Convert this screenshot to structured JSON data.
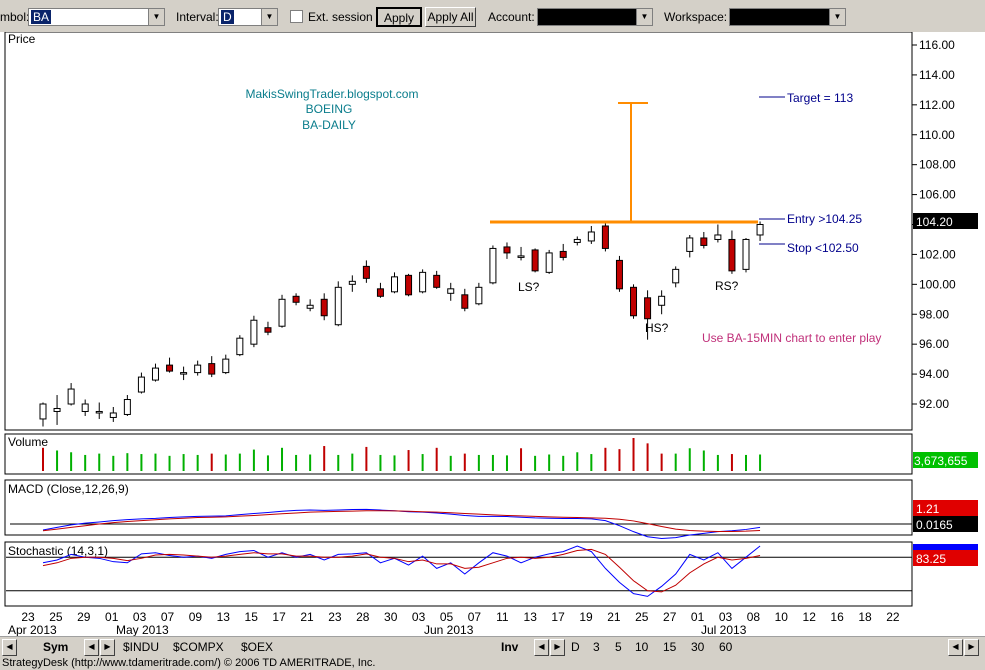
{
  "toolbar": {
    "symbol_label": "mbol:",
    "symbol_value": "BA",
    "interval_label": "Interval:",
    "interval_value": "D",
    "ext_session_label": "Ext. session",
    "apply_label": "Apply",
    "apply_all_label": "Apply All",
    "account_label": "Account:",
    "workspace_label": "Workspace:"
  },
  "panels": {
    "price_title": "Price",
    "volume_title": "Volume",
    "volume_readout": "3,673,655",
    "macd_title": "MACD (Close,12,26,9)",
    "macd_readout_1": "1.21",
    "macd_readout_2": "0.0165",
    "stoch_title": "Stochastic (14,3,1)",
    "stoch_readout": "83.25",
    "price_readout": "104.20"
  },
  "annotations": {
    "blog": "MakisSwingTrader.blogspot.com",
    "company": "BOEING",
    "chart_name": "BA-DAILY",
    "target": "Target = 113",
    "entry": "Entry >104.25",
    "stop": "Stop <102.50",
    "ls": "LS?",
    "hs": "HS?",
    "rs": "RS?",
    "note": "Use BA-15MIN chart to enter play"
  },
  "bottom_tabs": {
    "sym": "Sym",
    "indices": [
      "$INDU",
      "$COMPX",
      "$OEX"
    ],
    "inv": "Inv",
    "intervals": [
      "D",
      "3",
      "5",
      "10",
      "15",
      "30",
      "60"
    ]
  },
  "status_text": "StrategyDesk (http://www.tdameritrade.com/) © 2006 TD AMERITRADE, Inc.",
  "colors": {
    "up": "#ffffff",
    "down": "#c00000",
    "neckline": "#ff8c00",
    "annotation_blue": "#00008b",
    "annotation_teal": "#0a7d8c",
    "note_pink": "#c0307a",
    "volume_up": "#00b000",
    "volume_down": "#c00000"
  },
  "chart_data": {
    "type": "candlestick",
    "price_axis": {
      "ticks": [
        "116.00",
        "114.00",
        "112.00",
        "110.00",
        "108.00",
        "106.00",
        "104.00",
        "102.00",
        "100.00",
        "98.00",
        "96.00",
        "94.00",
        "92.00"
      ],
      "ylim": [
        90.5,
        116.5
      ]
    },
    "date_ticks": [
      "23",
      "25",
      "29",
      "01",
      "03",
      "07",
      "09",
      "13",
      "15",
      "17",
      "21",
      "23",
      "28",
      "30",
      "03",
      "05",
      "07",
      "11",
      "13",
      "17",
      "19",
      "21",
      "25",
      "27",
      "01",
      "03",
      "08",
      "10",
      "12",
      "16",
      "18",
      "22"
    ],
    "month_labels": [
      "Apr 2013",
      "May 2013",
      "Jun 2013",
      "Jul 2013"
    ],
    "candles": [
      {
        "o": 91.0,
        "h": 92.1,
        "l": 90.5,
        "c": 92.0
      },
      {
        "o": 91.5,
        "h": 92.6,
        "l": 90.6,
        "c": 91.7
      },
      {
        "o": 92.0,
        "h": 93.4,
        "l": 91.9,
        "c": 93.0
      },
      {
        "o": 91.5,
        "h": 92.3,
        "l": 91.2,
        "c": 92.0
      },
      {
        "o": 91.4,
        "h": 92.1,
        "l": 91.0,
        "c": 91.5
      },
      {
        "o": 91.1,
        "h": 91.8,
        "l": 90.8,
        "c": 91.4
      },
      {
        "o": 91.3,
        "h": 92.6,
        "l": 91.2,
        "c": 92.3
      },
      {
        "o": 92.8,
        "h": 94.1,
        "l": 92.7,
        "c": 93.8
      },
      {
        "o": 93.6,
        "h": 94.7,
        "l": 93.5,
        "c": 94.4
      },
      {
        "o": 94.6,
        "h": 95.1,
        "l": 94.1,
        "c": 94.2
      },
      {
        "o": 94.0,
        "h": 94.5,
        "l": 93.6,
        "c": 94.1
      },
      {
        "o": 94.1,
        "h": 94.9,
        "l": 93.9,
        "c": 94.6
      },
      {
        "o": 94.7,
        "h": 95.2,
        "l": 93.8,
        "c": 94.0
      },
      {
        "o": 94.1,
        "h": 95.3,
        "l": 94.0,
        "c": 95.0
      },
      {
        "o": 95.3,
        "h": 96.6,
        "l": 95.2,
        "c": 96.4
      },
      {
        "o": 96.0,
        "h": 97.9,
        "l": 95.8,
        "c": 97.6
      },
      {
        "o": 97.1,
        "h": 97.5,
        "l": 96.6,
        "c": 96.8
      },
      {
        "o": 97.2,
        "h": 99.3,
        "l": 97.1,
        "c": 99.0
      },
      {
        "o": 99.2,
        "h": 99.4,
        "l": 98.6,
        "c": 98.8
      },
      {
        "o": 98.4,
        "h": 99.0,
        "l": 98.2,
        "c": 98.6
      },
      {
        "o": 99.0,
        "h": 99.4,
        "l": 97.6,
        "c": 97.9
      },
      {
        "o": 97.3,
        "h": 100.2,
        "l": 97.2,
        "c": 99.8
      },
      {
        "o": 100.0,
        "h": 100.6,
        "l": 99.5,
        "c": 100.2
      },
      {
        "o": 101.2,
        "h": 101.6,
        "l": 100.1,
        "c": 100.4
      },
      {
        "o": 99.7,
        "h": 100.1,
        "l": 99.1,
        "c": 99.2
      },
      {
        "o": 99.5,
        "h": 100.8,
        "l": 99.4,
        "c": 100.5
      },
      {
        "o": 100.6,
        "h": 100.7,
        "l": 99.2,
        "c": 99.3
      },
      {
        "o": 99.5,
        "h": 101.0,
        "l": 99.4,
        "c": 100.8
      },
      {
        "o": 100.6,
        "h": 100.9,
        "l": 99.7,
        "c": 99.8
      },
      {
        "o": 99.4,
        "h": 100.1,
        "l": 98.9,
        "c": 99.7
      },
      {
        "o": 99.3,
        "h": 99.7,
        "l": 98.2,
        "c": 98.4
      },
      {
        "o": 98.7,
        "h": 100.1,
        "l": 98.6,
        "c": 99.8
      },
      {
        "o": 100.1,
        "h": 102.6,
        "l": 100.0,
        "c": 102.4
      },
      {
        "o": 102.5,
        "h": 102.8,
        "l": 101.7,
        "c": 102.1
      },
      {
        "o": 101.8,
        "h": 102.5,
        "l": 101.6,
        "c": 101.9
      },
      {
        "o": 102.3,
        "h": 102.4,
        "l": 100.8,
        "c": 100.9
      },
      {
        "o": 100.8,
        "h": 102.3,
        "l": 100.7,
        "c": 102.1
      },
      {
        "o": 102.2,
        "h": 102.7,
        "l": 101.6,
        "c": 101.8
      },
      {
        "o": 102.8,
        "h": 103.2,
        "l": 102.6,
        "c": 103.0
      },
      {
        "o": 102.9,
        "h": 103.9,
        "l": 102.7,
        "c": 103.5
      },
      {
        "o": 103.9,
        "h": 104.1,
        "l": 102.2,
        "c": 102.4
      },
      {
        "o": 101.6,
        "h": 101.9,
        "l": 99.5,
        "c": 99.7
      },
      {
        "o": 99.8,
        "h": 100.0,
        "l": 97.7,
        "c": 97.9
      },
      {
        "o": 99.1,
        "h": 99.6,
        "l": 96.3,
        "c": 97.7
      },
      {
        "o": 98.6,
        "h": 99.6,
        "l": 98.0,
        "c": 99.2
      },
      {
        "o": 100.1,
        "h": 101.2,
        "l": 99.8,
        "c": 101.0
      },
      {
        "o": 102.2,
        "h": 103.3,
        "l": 101.8,
        "c": 103.1
      },
      {
        "o": 103.1,
        "h": 103.5,
        "l": 102.4,
        "c": 102.6
      },
      {
        "o": 103.0,
        "h": 104.0,
        "l": 102.8,
        "c": 103.3
      },
      {
        "o": 103.0,
        "h": 103.6,
        "l": 100.7,
        "c": 100.9
      },
      {
        "o": 101.0,
        "h": 103.1,
        "l": 100.8,
        "c": 103.0
      },
      {
        "o": 103.3,
        "h": 104.2,
        "l": 102.9,
        "c": 104.0
      }
    ],
    "volume_colors": [
      "down",
      "up",
      "up",
      "up",
      "up",
      "up",
      "up",
      "up",
      "up",
      "up",
      "up",
      "up",
      "down",
      "up",
      "up",
      "up",
      "up",
      "up",
      "up",
      "up",
      "down",
      "up",
      "up",
      "down",
      "up",
      "up",
      "down",
      "up",
      "down",
      "up",
      "down",
      "up",
      "up",
      "up",
      "down",
      "up",
      "up",
      "up",
      "up",
      "up",
      "down",
      "down",
      "down",
      "down",
      "down",
      "up",
      "up",
      "up",
      "up",
      "down",
      "up",
      "up"
    ],
    "volume_values": [
      5.2,
      4.6,
      4.2,
      3.6,
      3.9,
      3.4,
      4.0,
      3.8,
      3.9,
      3.4,
      3.8,
      3.6,
      3.9,
      3.7,
      3.9,
      4.8,
      3.5,
      5.2,
      3.6,
      3.7,
      5.6,
      3.6,
      3.9,
      5.4,
      3.6,
      3.5,
      4.7,
      3.8,
      5.2,
      3.4,
      3.9,
      3.6,
      3.6,
      3.5,
      5.1,
      3.4,
      3.7,
      3.4,
      4.2,
      3.8,
      5.2,
      4.9,
      7.4,
      6.2,
      3.9,
      3.9,
      5.1,
      4.6,
      3.6,
      3.8,
      3.6,
      3.7
    ],
    "macd": [
      -0.35,
      -0.2,
      -0.05,
      0.05,
      0.12,
      0.2,
      0.26,
      0.3,
      0.33,
      0.38,
      0.42,
      0.45,
      0.46,
      0.48,
      0.55,
      0.62,
      0.68,
      0.75,
      0.8,
      0.82,
      0.8,
      0.82,
      0.85,
      0.86,
      0.82,
      0.78,
      0.72,
      0.7,
      0.65,
      0.58,
      0.5,
      0.45,
      0.45,
      0.44,
      0.4,
      0.36,
      0.34,
      0.32,
      0.32,
      0.3,
      0.2,
      -0.1,
      -0.45,
      -0.75,
      -0.85,
      -0.8,
      -0.65,
      -0.55,
      -0.45,
      -0.4,
      -0.32,
      -0.2
    ],
    "macd_signal": [
      -0.4,
      -0.3,
      -0.2,
      -0.1,
      0.0,
      0.08,
      0.15,
      0.2,
      0.25,
      0.3,
      0.34,
      0.38,
      0.4,
      0.42,
      0.46,
      0.5,
      0.55,
      0.6,
      0.65,
      0.7,
      0.72,
      0.74,
      0.76,
      0.78,
      0.78,
      0.77,
      0.75,
      0.72,
      0.7,
      0.66,
      0.62,
      0.58,
      0.54,
      0.5,
      0.48,
      0.45,
      0.42,
      0.4,
      0.38,
      0.36,
      0.34,
      0.28,
      0.18,
      0.02,
      -0.15,
      -0.3,
      -0.38,
      -0.42,
      -0.44,
      -0.44,
      -0.42,
      -0.38
    ],
    "stoch_k": [
      70,
      75,
      85,
      80,
      78,
      72,
      70,
      86,
      88,
      83,
      80,
      82,
      78,
      85,
      90,
      92,
      80,
      88,
      80,
      85,
      75,
      85,
      86,
      88,
      70,
      78,
      66,
      82,
      60,
      70,
      50,
      70,
      88,
      82,
      70,
      80,
      86,
      90,
      100,
      90,
      60,
      35,
      15,
      10,
      28,
      50,
      85,
      75,
      88,
      60,
      80,
      100
    ],
    "stoch_d": [
      65,
      70,
      78,
      80,
      80,
      78,
      74,
      78,
      84,
      85,
      84,
      82,
      80,
      82,
      85,
      88,
      86,
      86,
      82,
      82,
      80,
      80,
      82,
      86,
      80,
      78,
      72,
      75,
      68,
      68,
      60,
      62,
      70,
      78,
      80,
      78,
      80,
      85,
      92,
      94,
      85,
      62,
      38,
      20,
      18,
      30,
      52,
      68,
      80,
      75,
      78,
      83
    ]
  }
}
